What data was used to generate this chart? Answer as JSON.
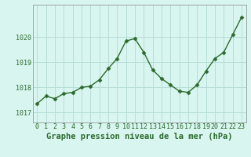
{
  "x": [
    0,
    1,
    2,
    3,
    4,
    5,
    6,
    7,
    8,
    9,
    10,
    11,
    12,
    13,
    14,
    15,
    16,
    17,
    18,
    19,
    20,
    21,
    22,
    23
  ],
  "y": [
    1017.35,
    1017.65,
    1017.55,
    1017.75,
    1017.8,
    1018.0,
    1018.05,
    1018.3,
    1018.75,
    1019.15,
    1019.85,
    1019.95,
    1019.4,
    1018.7,
    1018.35,
    1018.1,
    1017.85,
    1017.8,
    1018.1,
    1018.65,
    1019.15,
    1019.4,
    1020.1,
    1020.8
  ],
  "line_color": "#2d6a2d",
  "marker": "D",
  "markersize": 2.5,
  "linewidth": 1.0,
  "title": "Graphe pression niveau de la mer (hPa)",
  "xlabel_labels": [
    "0",
    "1",
    "2",
    "3",
    "4",
    "5",
    "6",
    "7",
    "8",
    "9",
    "10",
    "11",
    "12",
    "13",
    "14",
    "15",
    "16",
    "17",
    "18",
    "19",
    "20",
    "21",
    "22",
    "23"
  ],
  "ylim": [
    1016.6,
    1021.3
  ],
  "yticks": [
    1017,
    1018,
    1019,
    1020
  ],
  "bg_color": "#d8f5f0",
  "grid_color": "#b8ddd8",
  "title_color": "#2d6a2d",
  "title_fontsize": 7.5,
  "tick_fontsize": 6.0,
  "figwidth": 3.2,
  "figheight": 2.0
}
